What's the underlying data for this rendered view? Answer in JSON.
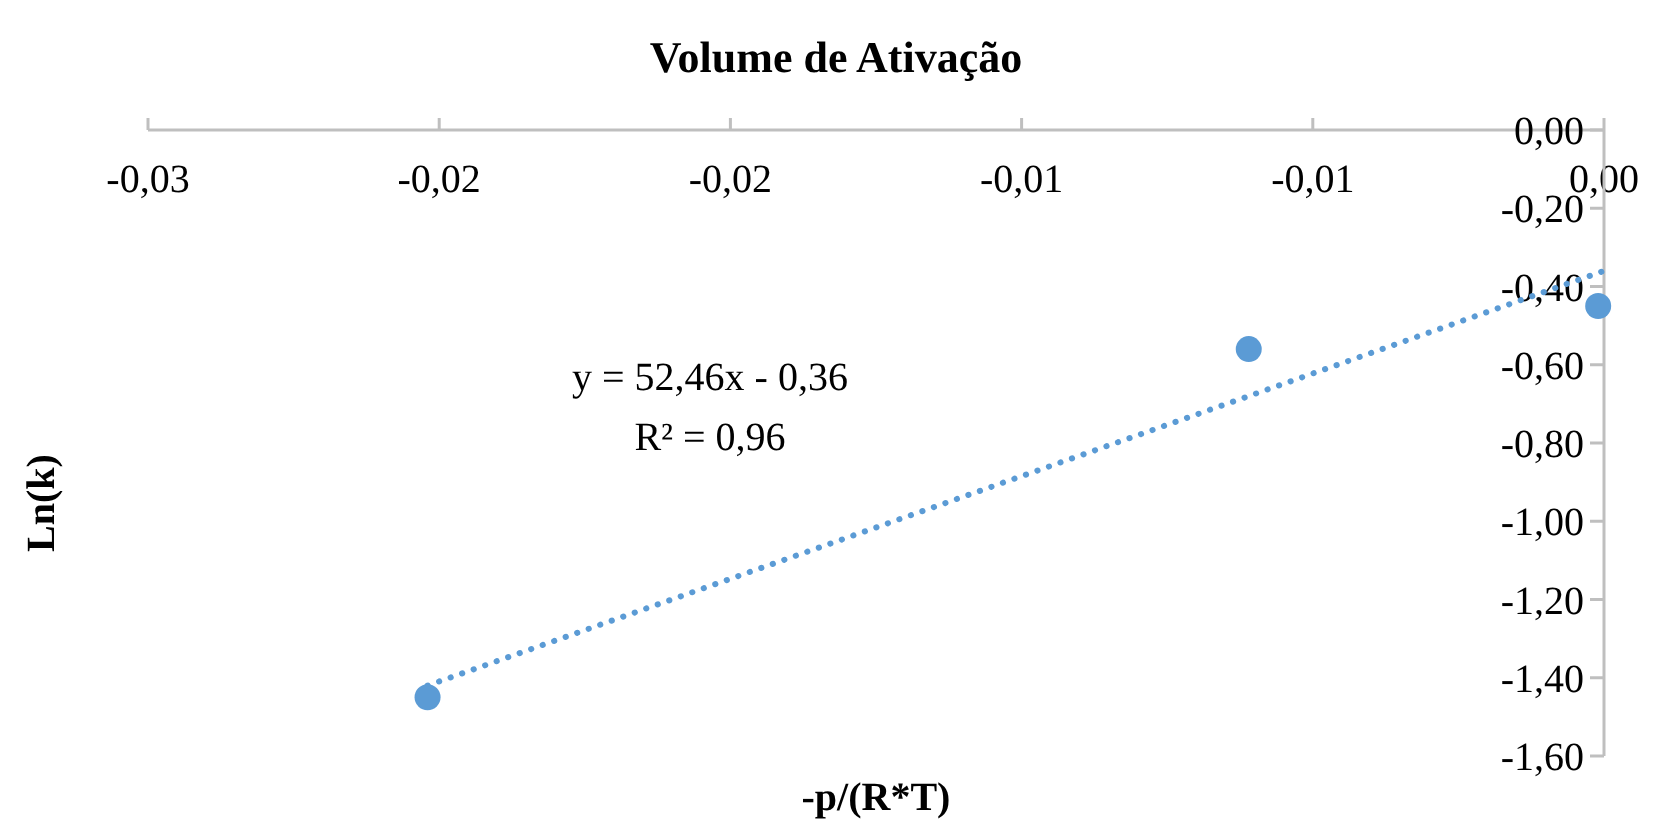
{
  "chart_data": {
    "type": "scatter",
    "title": "Volume de Ativação",
    "xlabel": "-p/(R*T)",
    "ylabel": "Ln(k)",
    "xlim": [
      -0.025,
      0
    ],
    "xticks": [
      {
        "value": -0.025,
        "label": "-0,03"
      },
      {
        "value": -0.02,
        "label": "-0,02"
      },
      {
        "value": -0.015,
        "label": "-0,02"
      },
      {
        "value": -0.01,
        "label": "-0,01"
      },
      {
        "value": -0.005,
        "label": "-0,01"
      },
      {
        "value": 0,
        "label": "0,00"
      }
    ],
    "ylim": [
      -1.6,
      0
    ],
    "yticks": [
      {
        "value": 0,
        "label": "0,00"
      },
      {
        "value": -0.2,
        "label": "-0,20"
      },
      {
        "value": -0.4,
        "label": "-0,40"
      },
      {
        "value": -0.6,
        "label": "-0,60"
      },
      {
        "value": -0.8,
        "label": "-0,80"
      },
      {
        "value": -1,
        "label": "-1,00"
      },
      {
        "value": -1.2,
        "label": "-1,20"
      },
      {
        "value": -1.4,
        "label": "-1,40"
      },
      {
        "value": -1.6,
        "label": "-1,60"
      }
    ],
    "grid": false,
    "series": [
      {
        "marker": "circle",
        "color": "#5b9bd5",
        "x": [
          -0.0202,
          -0.0061,
          -0.0001
        ],
        "values": [
          -1.45,
          -0.56,
          -0.45
        ]
      },
      {
        "type": "line",
        "line_style": "dotted",
        "marker": "none",
        "color": "#5b9bd5",
        "x": [
          -0.0202,
          0
        ],
        "values": [
          -1.42,
          -0.36
        ]
      }
    ],
    "annotations": [
      "y = 52,46x  - 0,36",
      "R² = 0,96"
    ]
  }
}
